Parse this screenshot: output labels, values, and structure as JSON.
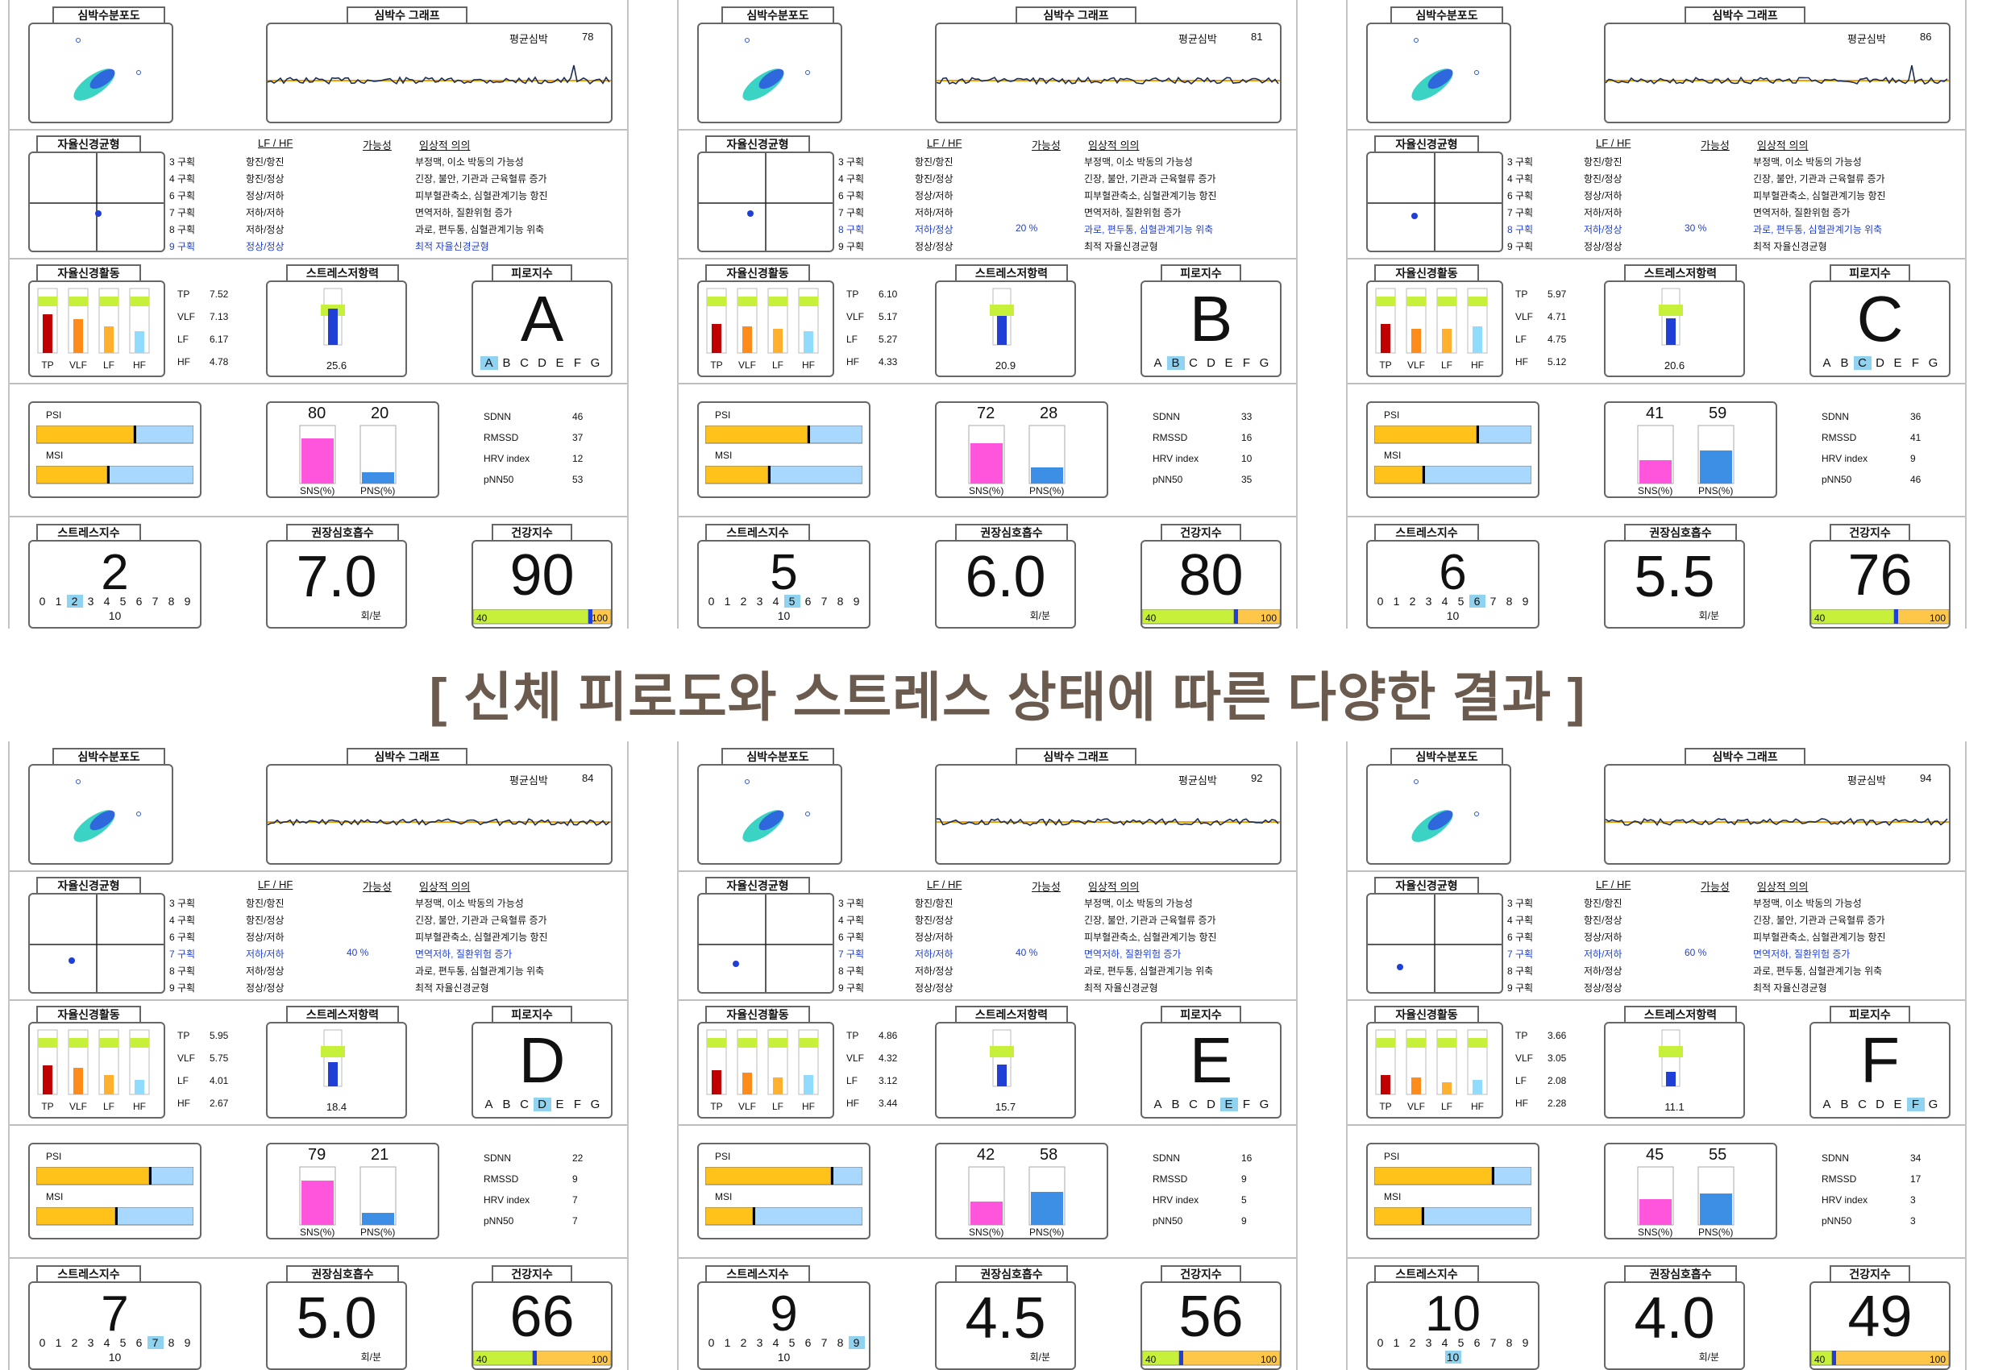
{
  "caption": "[ 신체 피로도와 스트레스 상태에 따른 다양한 결과 ]",
  "labels": {
    "scatter_title": "심박수분포도",
    "hr_graph_title": "심박수 그래프",
    "avg_hr": "평균심박",
    "balance_title": "자율신경균형",
    "lfhf_header": "LF / HF",
    "possibility_header": "가능성",
    "clinical_header": "임상적 의의",
    "activity_title": "자율신경활동",
    "stress_resist_title": "스트레스저항력",
    "fatigue_title": "피로지수",
    "stress_index_title": "스트레스지수",
    "breath_title": "권장심호흡수",
    "health_title": "건강지수",
    "psi": "PSI",
    "msi": "MSI",
    "sns": "SNS(%)",
    "pns": "PNS(%)",
    "per_min": "회/분",
    "tp": "TP",
    "vlf": "VLF",
    "lf": "LF",
    "hf": "HF",
    "sdnn": "SDNN",
    "rmssd": "RMSSD",
    "hrv_index": "HRV index",
    "pnn50": "pNN50",
    "health_min": "40",
    "health_max": "100"
  },
  "zones": [
    {
      "zone": "3 구획",
      "lfhf": "항진/항진",
      "meaning": "부정맥, 이소 박동의 가능성"
    },
    {
      "zone": "4 구획",
      "lfhf": "항진/정상",
      "meaning": "긴장, 불안, 기관과 근육혈류 증가"
    },
    {
      "zone": "6 구획",
      "lfhf": "정상/저하",
      "meaning": "피부혈관축소, 심혈관계기능 항진"
    },
    {
      "zone": "7 구획",
      "lfhf": "저하/저하",
      "meaning": "면역저하, 질환위험 증가"
    },
    {
      "zone": "8 구획",
      "lfhf": "저하/정상",
      "meaning": "과로, 편두통, 심혈관계기능 위축"
    },
    {
      "zone": "9 구획",
      "lfhf": "정상/정상",
      "meaning": "최적 자율신경균형"
    }
  ],
  "grades": [
    "A",
    "B",
    "C",
    "D",
    "E",
    "F",
    "G"
  ],
  "scale": [
    "0",
    "1",
    "2",
    "3",
    "4",
    "5",
    "6",
    "7",
    "8",
    "9",
    "10"
  ],
  "reports": [
    {
      "avg_hr": "78",
      "highlight_zone": 5,
      "possibility": "",
      "tp": "7.52",
      "vlf": "7.13",
      "lf": "6.17",
      "hf": "4.78",
      "resist": "25.6",
      "resist_level": 0.75,
      "grade": "A",
      "sns": "80",
      "pns": "20",
      "psi": 0.62,
      "msi": 0.45,
      "sdnn": "46",
      "rmssd": "37",
      "hrv": "12",
      "pnn50": "53",
      "stress": "2",
      "breath": "7.0",
      "health": "90",
      "act": [
        0.8,
        0.7,
        0.55,
        0.45
      ]
    },
    {
      "avg_hr": "81",
      "highlight_zone": 4,
      "possibility": "20 %",
      "tp": "6.10",
      "vlf": "5.17",
      "lf": "5.27",
      "hf": "4.33",
      "resist": "20.9",
      "resist_level": 0.6,
      "grade": "B",
      "sns": "72",
      "pns": "28",
      "psi": 0.65,
      "msi": 0.4,
      "sdnn": "33",
      "rmssd": "16",
      "hrv": "10",
      "pnn50": "35",
      "stress": "5",
      "breath": "6.0",
      "health": "80",
      "act": [
        0.6,
        0.55,
        0.5,
        0.45
      ]
    },
    {
      "avg_hr": "86",
      "highlight_zone": 4,
      "possibility": "30 %",
      "tp": "5.97",
      "vlf": "4.71",
      "lf": "4.75",
      "hf": "5.12",
      "resist": "20.6",
      "resist_level": 0.55,
      "grade": "C",
      "sns": "41",
      "pns": "59",
      "psi": 0.65,
      "msi": 0.31,
      "sdnn": "36",
      "rmssd": "41",
      "hrv": "9",
      "pnn50": "46",
      "stress": "6",
      "breath": "5.5",
      "health": "76",
      "act": [
        0.6,
        0.5,
        0.5,
        0.55
      ]
    },
    {
      "avg_hr": "84",
      "highlight_zone": 3,
      "possibility": "40 %",
      "tp": "5.95",
      "vlf": "5.75",
      "lf": "4.01",
      "hf": "2.67",
      "resist": "18.4",
      "resist_level": 0.5,
      "grade": "D",
      "sns": "79",
      "pns": "21",
      "psi": 0.72,
      "msi": 0.5,
      "sdnn": "22",
      "rmssd": "9",
      "hrv": "7",
      "pnn50": "7",
      "stress": "7",
      "breath": "5.0",
      "health": "66",
      "act": [
        0.6,
        0.55,
        0.4,
        0.3
      ]
    },
    {
      "avg_hr": "92",
      "highlight_zone": 3,
      "possibility": "40 %",
      "tp": "4.86",
      "vlf": "4.32",
      "lf": "3.12",
      "hf": "3.44",
      "resist": "15.7",
      "resist_level": 0.45,
      "grade": "E",
      "sns": "42",
      "pns": "58",
      "psi": 0.8,
      "msi": 0.3,
      "sdnn": "16",
      "rmssd": "9",
      "hrv": "5",
      "pnn50": "9",
      "stress": "9",
      "breath": "4.5",
      "health": "56",
      "act": [
        0.5,
        0.45,
        0.35,
        0.4
      ]
    },
    {
      "avg_hr": "94",
      "highlight_zone": 3,
      "possibility": "60 %",
      "tp": "3.66",
      "vlf": "3.05",
      "lf": "2.08",
      "hf": "2.28",
      "resist": "11.1",
      "resist_level": 0.3,
      "grade": "F",
      "sns": "45",
      "pns": "55",
      "psi": 0.75,
      "msi": 0.3,
      "sdnn": "34",
      "rmssd": "17",
      "hrv": "3",
      "pnn50": "3",
      "stress": "10",
      "breath": "4.0",
      "health": "49",
      "act": [
        0.4,
        0.35,
        0.25,
        0.3
      ]
    }
  ]
}
